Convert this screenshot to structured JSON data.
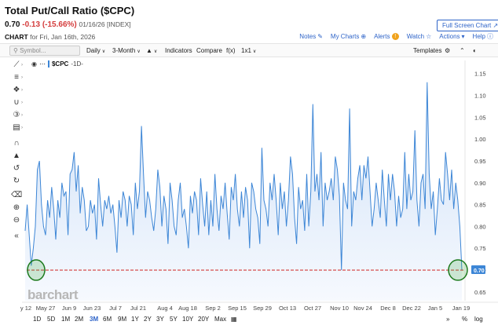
{
  "header": {
    "title": "Total Put/Call Ratio ($CPC)",
    "price": "0.70",
    "change": "-0.13 (-15.66%)",
    "meta": "01/16/26 [INDEX]",
    "fullscreen_label": "Full Screen Chart"
  },
  "chartbar": {
    "label": "CHART",
    "date": "for Fri, Jan 16th, 2026",
    "links": {
      "notes": "Notes",
      "my_charts": "My Charts",
      "alerts": "Alerts",
      "watch": "Watch",
      "actions": "Actions",
      "help": "Help"
    }
  },
  "toolbar": {
    "search_placeholder": "Symbol...",
    "daily": "Daily",
    "range": "3-Month",
    "indicators": "Indicators",
    "compare": "Compare",
    "fx": "f(x)",
    "layout": "1x1",
    "templates": "Templates"
  },
  "series": {
    "symbol": "$CPC",
    "period": "-1D-",
    "line_color": "#3d86d6",
    "fill_color": "#e3eefb"
  },
  "watermark": "barchart",
  "periods": [
    "1D",
    "5D",
    "1M",
    "2M",
    "3M",
    "6M",
    "9M",
    "1Y",
    "2Y",
    "3Y",
    "5Y",
    "10Y",
    "20Y",
    "Max"
  ],
  "active_period": "3M",
  "period_right": {
    "pct": "%",
    "log": "log"
  },
  "chart_data": {
    "type": "line",
    "ylim": [
      0.63,
      1.18
    ],
    "yticks": [
      "1.15",
      "1.10",
      "1.05",
      "1.00",
      "0.95",
      "0.90",
      "0.85",
      "0.80",
      "0.75",
      "0.70",
      "0.65"
    ],
    "xticks": [
      "y 12",
      "May 27",
      "Jun 9",
      "Jun 23",
      "Jul 7",
      "Jul 21",
      "Aug 4",
      "Aug 18",
      "Sep 2",
      "Sep 15",
      "Sep 29",
      "Oct 13",
      "Oct 27",
      "Nov 10",
      "Nov 24",
      "Dec 8",
      "Dec 22",
      "Jan 5",
      "Jan 19"
    ],
    "last_value_label": "0.70",
    "reference_line": 0.7,
    "reference_color": "#d43c3c",
    "values": [
      0.79,
      0.85,
      0.78,
      0.71,
      0.75,
      0.8,
      0.93,
      0.95,
      0.85,
      0.8,
      0.78,
      0.86,
      0.82,
      0.89,
      0.84,
      0.77,
      0.86,
      0.82,
      0.9,
      0.87,
      0.88,
      0.78,
      0.92,
      0.93,
      0.97,
      0.88,
      0.94,
      0.83,
      0.89,
      0.86,
      0.79,
      0.8,
      0.86,
      0.83,
      0.85,
      0.77,
      0.91,
      0.85,
      0.8,
      0.86,
      0.84,
      0.87,
      0.83,
      0.85,
      0.8,
      0.74,
      0.86,
      0.82,
      0.88,
      0.86,
      0.8,
      0.87,
      0.85,
      0.78,
      0.9,
      0.84,
      0.88,
      1.03,
      0.92,
      0.82,
      0.88,
      0.86,
      0.82,
      0.79,
      0.84,
      0.93,
      0.89,
      0.8,
      0.87,
      0.84,
      0.76,
      0.9,
      0.86,
      0.8,
      0.78,
      0.86,
      0.9,
      0.82,
      0.84,
      0.8,
      0.75,
      0.87,
      0.83,
      0.88,
      0.86,
      0.78,
      0.91,
      0.85,
      0.8,
      0.88,
      0.78,
      0.86,
      0.8,
      0.92,
      0.84,
      0.79,
      0.87,
      0.84,
      0.9,
      0.83,
      0.77,
      0.89,
      0.86,
      0.92,
      0.84,
      0.8,
      0.88,
      0.82,
      0.89,
      0.86,
      0.75,
      0.9,
      0.88,
      0.84,
      0.82,
      0.76,
      0.98,
      0.86,
      0.84,
      0.8,
      0.9,
      0.86,
      0.92,
      0.86,
      0.78,
      0.9,
      0.84,
      0.88,
      0.8,
      0.86,
      0.96,
      0.92,
      0.82,
      0.76,
      0.89,
      0.84,
      0.86,
      0.79,
      0.92,
      0.8,
      0.88,
      1.08,
      0.88,
      0.92,
      0.86,
      0.97,
      0.8,
      0.9,
      0.86,
      0.88,
      0.91,
      0.86,
      0.96,
      0.93,
      0.87,
      0.7,
      0.9,
      0.86,
      0.84,
      1.07,
      0.8,
      0.88,
      0.86,
      0.91,
      0.94,
      0.86,
      0.94,
      0.91,
      0.96,
      0.88,
      0.8,
      0.84,
      0.9,
      0.86,
      0.82,
      0.93,
      0.86,
      0.8,
      0.92,
      0.86,
      0.92,
      0.88,
      0.8,
      0.87,
      0.82,
      0.84,
      0.97,
      0.84,
      0.92,
      0.86,
      0.88,
      1.02,
      0.86,
      0.8,
      0.9,
      0.92,
      0.84,
      1.13,
      0.92,
      0.84,
      0.88,
      0.78,
      0.84,
      0.91,
      0.86,
      0.85,
      0.97,
      0.92,
      0.86,
      0.93,
      0.84,
      0.9,
      0.86,
      0.8,
      0.7
    ]
  }
}
